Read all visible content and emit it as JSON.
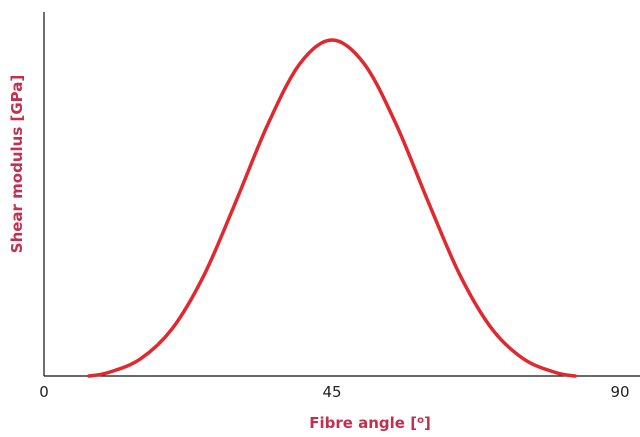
{
  "chart_data": {
    "type": "line",
    "xlabel": "Fibre angle [",
    "xlabel_sup": "o",
    "xlabel_close": "]",
    "ylabel": "Shear modulus [GPa]",
    "xlim": [
      0,
      90
    ],
    "x_ticks": [
      "0",
      "45",
      "90"
    ],
    "y_ticks": [],
    "ylim": [
      0,
      1
    ],
    "grid": false,
    "legend": "none",
    "series": [
      {
        "x": [
          7,
          10,
          15,
          20,
          25,
          30,
          35,
          40,
          45,
          50,
          55,
          60,
          65,
          70,
          75,
          80,
          83
        ],
        "y": [
          0.0,
          0.01,
          0.05,
          0.14,
          0.3,
          0.52,
          0.75,
          0.93,
          1.0,
          0.93,
          0.75,
          0.52,
          0.3,
          0.14,
          0.05,
          0.01,
          0.0
        ],
        "color": "#e0282e"
      }
    ]
  }
}
